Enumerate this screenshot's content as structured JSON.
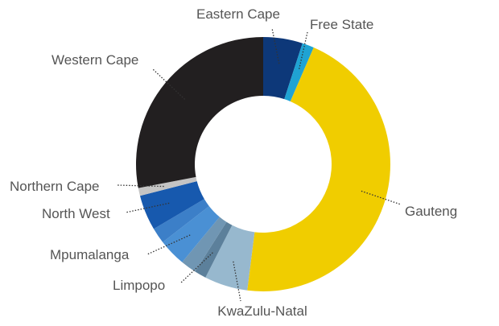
{
  "chart_data": {
    "type": "pie",
    "donut": true,
    "title": "",
    "unit": "%",
    "legend": "none",
    "slices": [
      {
        "label": "Eastern Cape",
        "value": 5.0,
        "color": "#0d3879"
      },
      {
        "label": "Free State",
        "value": 1.5,
        "color": "#1fa3d3"
      },
      {
        "label": "Gauteng",
        "value": 45.5,
        "color": "#f0cd00"
      },
      {
        "label": "KwaZulu-Natal",
        "value": 5.5,
        "color": "#97b8ce"
      },
      {
        "label": "Limpopo",
        "value": 1.5,
        "color": "#5c809b"
      },
      {
        "label": "Limpopo-2",
        "value": 2.0,
        "color": "#7096b3"
      },
      {
        "label": "Mpumalanga",
        "value": 3.5,
        "color": "#4a90d4"
      },
      {
        "label": "Mpumalanga-2",
        "value": 2.0,
        "color": "#3c7fc8"
      },
      {
        "label": "North West",
        "value": 4.5,
        "color": "#1759ae"
      },
      {
        "label": "Northern Cape",
        "value": 1.0,
        "color": "#c4c4c4"
      },
      {
        "label": "Western Cape",
        "value": 28.0,
        "color": "#221f20"
      }
    ],
    "labels": [
      {
        "text": "Eastern Cape",
        "slice": 0
      },
      {
        "text": "Free State",
        "slice": 1
      },
      {
        "text": "Gauteng",
        "slice": 2
      },
      {
        "text": "KwaZulu-Natal",
        "slice": 3
      },
      {
        "text": "Limpopo",
        "slice": 4
      },
      {
        "text": "Mpumalanga",
        "slice": 6
      },
      {
        "text": "North West",
        "slice": 8
      },
      {
        "text": "Northern Cape",
        "slice": 9
      },
      {
        "text": "Western Cape",
        "slice": 10
      }
    ]
  }
}
